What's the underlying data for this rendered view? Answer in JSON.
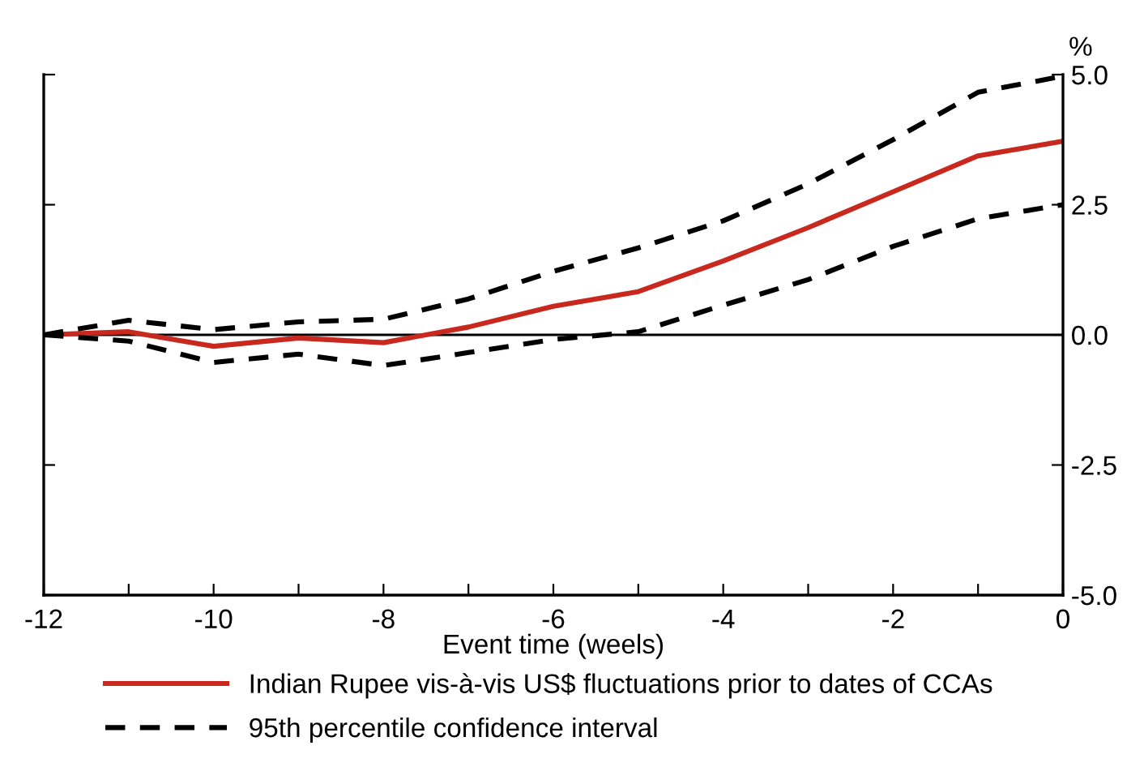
{
  "chart_data": {
    "type": "line",
    "xlabel": "Event time (weels)",
    "ylabel": "%",
    "x": [
      -12,
      -11,
      -10,
      -9,
      -8,
      -7,
      -6,
      -5,
      -4,
      -3,
      -2,
      -1,
      0
    ],
    "series": [
      {
        "name": "Indian Rupee vis-à-vis US$ fluctuations prior to dates of CCAs",
        "color": "#c8281e",
        "line_style": "solid",
        "values": [
          0,
          0.06,
          -0.22,
          -0.06,
          -0.15,
          0.15,
          0.55,
          0.83,
          1.42,
          2.06,
          2.75,
          3.44,
          3.72
        ]
      },
      {
        "name": "95th percentile confidence interval",
        "color": "#000000",
        "line_style": "dashed",
        "values": [
          0,
          0.28,
          0.1,
          0.25,
          0.3,
          0.69,
          1.22,
          1.67,
          2.19,
          2.9,
          3.75,
          4.66,
          4.97
        ]
      },
      {
        "color": "#000000",
        "line_style": "dashed",
        "values": [
          0,
          -0.12,
          -0.53,
          -0.37,
          -0.59,
          -0.34,
          -0.09,
          0.06,
          0.57,
          1.06,
          1.7,
          2.23,
          2.5
        ]
      }
    ],
    "xlim": [
      -12,
      0
    ],
    "xticks": [
      -12,
      {
        "value": -11,
        "label": null
      },
      -10,
      {
        "value": -9,
        "label": null
      },
      -8,
      {
        "value": -7,
        "label": null
      },
      -6,
      {
        "value": -5,
        "label": null
      },
      -4,
      {
        "value": -3,
        "label": null
      },
      -2,
      {
        "value": -1,
        "label": null
      },
      0
    ],
    "ylim": [
      -5,
      5
    ],
    "yticks": [
      {
        "value": -5,
        "label": "-5.0"
      },
      {
        "value": -2.5,
        "label": "-2.5"
      },
      {
        "value": 0,
        "label": "0.0"
      },
      {
        "value": 2.5,
        "label": "2.5"
      },
      {
        "value": 5,
        "label": "5.0"
      }
    ],
    "ref_lines": [
      {
        "axis": "y",
        "value": 0,
        "color": "#000000",
        "line_style": "solid"
      }
    ],
    "grid": false,
    "legend": "bottom",
    "marker": "none"
  }
}
